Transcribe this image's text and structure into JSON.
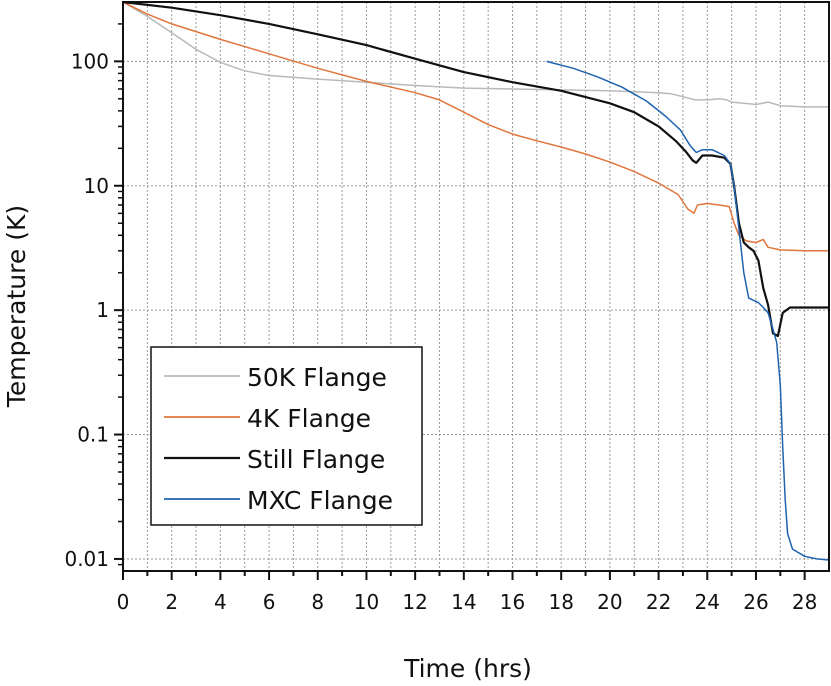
{
  "chart_data": {
    "type": "line",
    "title": "",
    "xlabel": "Time (hrs)",
    "ylabel": "Temperature (K)",
    "xlim": [
      0,
      29
    ],
    "ylim": [
      0.008,
      300
    ],
    "yscale": "log",
    "grid": true,
    "legend_position": "lower-left",
    "xticks": [
      0,
      2,
      4,
      6,
      8,
      10,
      12,
      14,
      16,
      18,
      20,
      22,
      24,
      26,
      28
    ],
    "yticks": [
      {
        "value": 0.01,
        "label": "0.01"
      },
      {
        "value": 0.1,
        "label": "0.1"
      },
      {
        "value": 1,
        "label": "1"
      },
      {
        "value": 10,
        "label": "10"
      },
      {
        "value": 100,
        "label": "100"
      }
    ],
    "series": [
      {
        "name": "50K Flange",
        "color": "#b9b9b9",
        "x": [
          0,
          1,
          2,
          3,
          4,
          5,
          6,
          8,
          10,
          12,
          14,
          16,
          18,
          20,
          21,
          22,
          22.5,
          23,
          23.5,
          24,
          24.5,
          24.8,
          25,
          25.5,
          26,
          26.5,
          27,
          28,
          29
        ],
        "y": [
          300,
          230,
          170,
          125,
          98,
          84,
          77,
          72,
          68,
          64,
          61,
          60,
          59,
          58,
          57,
          56,
          55,
          52,
          49,
          49,
          50,
          49,
          47,
          46,
          45,
          47,
          44,
          43,
          43
        ]
      },
      {
        "name": "4K Flange",
        "color": "#e0763c",
        "x": [
          0,
          1,
          2,
          4,
          6,
          8,
          10,
          12,
          13,
          14,
          15,
          16,
          17,
          18,
          19,
          20,
          21,
          22,
          22.8,
          23.2,
          23.45,
          23.6,
          24,
          24.5,
          24.9,
          25.1,
          25.3,
          25.6,
          26,
          26.3,
          26.5,
          27,
          28,
          29
        ],
        "y": [
          300,
          240,
          200,
          150,
          115,
          88,
          69,
          56,
          49,
          39,
          31,
          26,
          23,
          20.5,
          18,
          15.5,
          13,
          10.5,
          8.5,
          6.5,
          6.0,
          7.0,
          7.2,
          7.0,
          6.8,
          5.0,
          4.0,
          3.6,
          3.5,
          3.7,
          3.2,
          3.05,
          3.0,
          3.0
        ]
      },
      {
        "name": "Still Flange",
        "color": "#111111",
        "x": [
          0,
          2,
          4,
          6,
          8,
          10,
          12,
          14,
          16,
          18,
          20,
          21,
          22,
          22.7,
          23.1,
          23.4,
          23.55,
          23.8,
          24.2,
          24.7,
          24.95,
          25.1,
          25.3,
          25.5,
          25.7,
          25.9,
          26.1,
          26.3,
          26.5,
          26.7,
          26.9,
          27.1,
          27.4,
          28,
          29
        ],
        "y": [
          300,
          270,
          235,
          200,
          165,
          135,
          105,
          82,
          68,
          58,
          46,
          39,
          30,
          23,
          19,
          16,
          15.3,
          17.5,
          17.5,
          16.8,
          15,
          10,
          5,
          3.5,
          3.2,
          3.0,
          2.5,
          1.5,
          1.1,
          0.65,
          0.62,
          0.95,
          1.05,
          1.05,
          1.05
        ]
      },
      {
        "name": "MXC Flange",
        "color": "#1f63b0",
        "x": [
          17.4,
          18.5,
          19.5,
          20.5,
          21.5,
          22.3,
          22.9,
          23.3,
          23.55,
          23.8,
          24.2,
          24.7,
          24.95,
          25.1,
          25.3,
          25.5,
          25.7,
          25.9,
          26.1,
          26.3,
          26.5,
          26.7,
          26.85,
          27,
          27.1,
          27.2,
          27.3,
          27.5,
          28,
          28.5,
          29
        ],
        "y": [
          100,
          88,
          75,
          62,
          48,
          36,
          28,
          21,
          18.5,
          19.5,
          19.5,
          17.5,
          15,
          10,
          4.5,
          2.0,
          1.25,
          1.2,
          1.15,
          1.05,
          0.95,
          0.7,
          0.55,
          0.25,
          0.08,
          0.03,
          0.016,
          0.012,
          0.0105,
          0.01,
          0.0098
        ]
      }
    ]
  }
}
